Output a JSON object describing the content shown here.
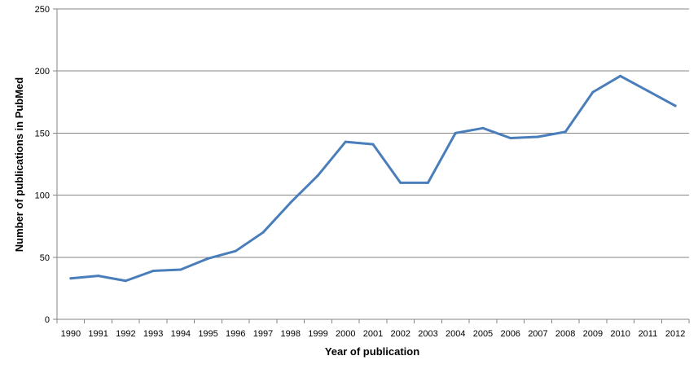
{
  "chart_data": {
    "type": "line",
    "title": "",
    "xlabel": "Year of publication",
    "ylabel": "Number of publications in PubMed",
    "ylim": [
      0,
      250
    ],
    "yticks": [
      0,
      50,
      100,
      150,
      200,
      250
    ],
    "grid": "horizontal",
    "legend": "none",
    "categories": [
      "1990",
      "1991",
      "1992",
      "1993",
      "1994",
      "1995",
      "1996",
      "1997",
      "1998",
      "1999",
      "2000",
      "2001",
      "2002",
      "2003",
      "2004",
      "2005",
      "2006",
      "2007",
      "2008",
      "2009",
      "2010",
      "2011",
      "2012"
    ],
    "series": [
      {
        "color": "#4a7ebb",
        "values": [
          33,
          35,
          31,
          39,
          40,
          49,
          55,
          70,
          94,
          116,
          143,
          141,
          110,
          110,
          150,
          154,
          146,
          147,
          151,
          183,
          196,
          184,
          172
        ]
      }
    ],
    "colors": {
      "line": "#4a7ebb",
      "grid": "#868686",
      "axis": "#868686"
    }
  }
}
